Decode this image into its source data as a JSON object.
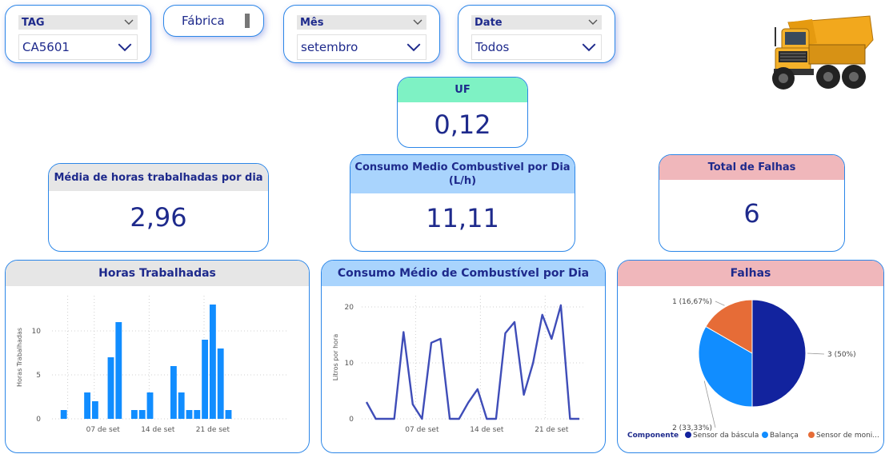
{
  "filters": {
    "tag": {
      "title": "TAG",
      "value": "CA5601"
    },
    "fabrica": {
      "label": "Fábrica"
    },
    "mes": {
      "title": "Mês",
      "value": "setembro"
    },
    "date": {
      "title": "Date",
      "value": "Todos"
    }
  },
  "kpis": {
    "uf": {
      "title": "UF",
      "value": "0,12"
    },
    "horas": {
      "title": "Média de horas trabalhadas por dia",
      "value": "2,96"
    },
    "consumo": {
      "title_line1": "Consumo Medio Combustivel por Dia",
      "title_line2": "(L/h)",
      "value": "11,11"
    },
    "falhas": {
      "title": "Total de Falhas",
      "value": "6"
    }
  },
  "charts": {
    "horas_title": "Horas Trabalhadas",
    "consumo_title": "Consumo Médio de Combustível por Dia",
    "falhas_title": "Falhas"
  },
  "colors": {
    "accent_blue": "#118dff",
    "line_blue": "#3f4db8",
    "pie_dark": "#12239e",
    "pie_light": "#118dff",
    "pie_orange": "#e66c37",
    "uf_header": "#7ef2c4",
    "consumo_header": "#a9d4fd",
    "falhas_header": "#f0b7bb",
    "horas_header": "#e6e6e6"
  },
  "chart_data": [
    {
      "type": "bar",
      "title": "Horas Trabalhadas",
      "ylabel": "Horas Trabalhadas",
      "ylim": [
        0,
        14
      ],
      "yticks": [
        0,
        5,
        10
      ],
      "x": [
        1,
        2,
        3,
        4,
        5,
        6,
        7,
        8,
        9,
        10,
        11,
        12,
        13,
        14,
        15,
        16,
        17,
        18,
        19,
        20,
        21,
        22,
        23,
        24,
        25,
        26,
        27,
        28,
        29,
        30
      ],
      "values": [
        0,
        1,
        0,
        0,
        3,
        2,
        0,
        7,
        11,
        0,
        1,
        1,
        3,
        0,
        0,
        6,
        3,
        1,
        1,
        9,
        13,
        8,
        1,
        0,
        0,
        0,
        0,
        0,
        0,
        0
      ],
      "xtick_labels": [
        {
          "x": 7,
          "label": "07 de set"
        },
        {
          "x": 14,
          "label": "14 de set"
        },
        {
          "x": 21,
          "label": "21 de set"
        }
      ],
      "grid": true
    },
    {
      "type": "line",
      "title": "Consumo Médio de Combustível por Dia",
      "ylabel": "Litros por hora",
      "ylim": [
        0,
        22
      ],
      "yticks": [
        0,
        10,
        20
      ],
      "x": [
        1,
        2,
        3,
        4,
        5,
        6,
        7,
        8,
        9,
        10,
        11,
        12,
        13,
        14,
        15,
        16,
        17,
        18,
        19,
        20,
        21,
        22,
        23,
        24
      ],
      "values": [
        3,
        0,
        0,
        0,
        15.5,
        2.6,
        0,
        13.6,
        14.3,
        0,
        0,
        2.9,
        5.3,
        0,
        0,
        15.3,
        17.3,
        4.3,
        10,
        18.6,
        14.3,
        20.3,
        0,
        0
      ],
      "xtick_labels": [
        {
          "x": 7,
          "label": "07 de set"
        },
        {
          "x": 14,
          "label": "14 de set"
        },
        {
          "x": 21,
          "label": "21 de set"
        }
      ],
      "grid": true
    },
    {
      "type": "pie",
      "title": "Falhas",
      "legend_title": "Componente",
      "legend_position": "bottom",
      "slices": [
        {
          "name": "Sensor da báscula",
          "value": 3,
          "label": "3 (50%)",
          "color": "#12239e"
        },
        {
          "name": "Balança",
          "value": 2,
          "label": "2 (33,33%)",
          "color": "#118dff"
        },
        {
          "name": "Sensor de moni...",
          "value": 1,
          "label": "1 (16,67%)",
          "color": "#e66c37"
        }
      ]
    }
  ]
}
